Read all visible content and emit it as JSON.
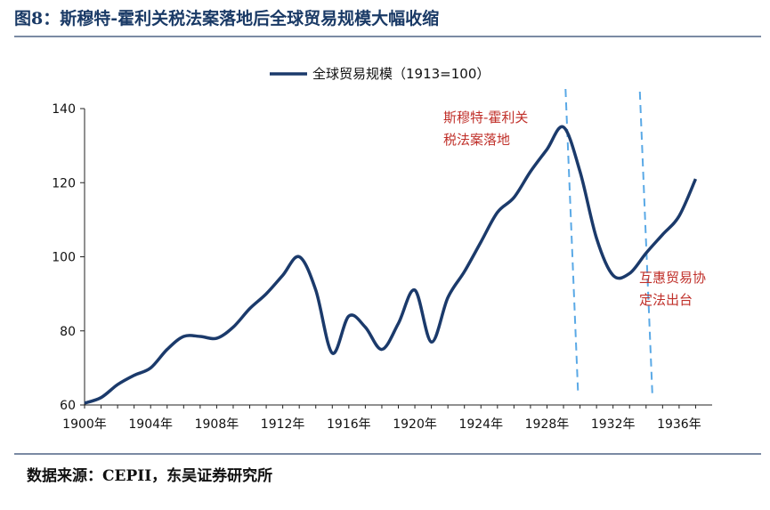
{
  "header": {
    "title": "图8：斯穆特-霍利关税法案落地后全球贸易规模大幅收缩"
  },
  "footer": {
    "source": "数据来源：CEPII，东吴证券研究所"
  },
  "chart_data": {
    "type": "line",
    "title": "图8：斯穆特-霍利关税法案落地后全球贸易规模大幅收缩",
    "xlabel": "",
    "ylabel": "",
    "ylim": [
      60,
      140
    ],
    "xlim": [
      1900,
      1938
    ],
    "yticks": [
      60,
      80,
      100,
      120,
      140
    ],
    "xtick_labels": [
      "1900年",
      "1904年",
      "1908年",
      "1912年",
      "1916年",
      "1920年",
      "1924年",
      "1928年",
      "1932年",
      "1936年"
    ],
    "xtick_values": [
      1900,
      1904,
      1908,
      1912,
      1916,
      1920,
      1924,
      1928,
      1932,
      1936
    ],
    "legend": {
      "position": "top-center",
      "entries": [
        "全球贸易规模（1913=100）"
      ]
    },
    "grid": false,
    "series": [
      {
        "name": "全球贸易规模（1913=100）",
        "color": "#1b3a6b",
        "x": [
          1900,
          1901,
          1902,
          1903,
          1904,
          1905,
          1906,
          1907,
          1908,
          1909,
          1910,
          1911,
          1912,
          1913,
          1914,
          1915,
          1916,
          1917,
          1918,
          1919,
          1920,
          1921,
          1922,
          1923,
          1924,
          1925,
          1926,
          1927,
          1928,
          1929,
          1930,
          1931,
          1932,
          1933,
          1934,
          1935,
          1936,
          1937
        ],
        "values": [
          60.5,
          62,
          65.5,
          68,
          70,
          75,
          78.5,
          78.5,
          78,
          81,
          86,
          90,
          95,
          100,
          91,
          74,
          84,
          81,
          75,
          82,
          91,
          77,
          89,
          96,
          104,
          112,
          116,
          123,
          129,
          135,
          123,
          105,
          95,
          95.5,
          101,
          106,
          111,
          121
        ]
      }
    ],
    "annotations": [
      {
        "text": [
          "斯穆特-霍利关",
          "税法案落地"
        ],
        "x": 1929.5,
        "color": "#c0302a"
      },
      {
        "text": [
          "互惠贸易协",
          "定法出台"
        ],
        "x": 1934,
        "color": "#c0302a"
      }
    ],
    "vlines": [
      1929.5,
      1934
    ],
    "vline_color": "#5aa9e6"
  }
}
